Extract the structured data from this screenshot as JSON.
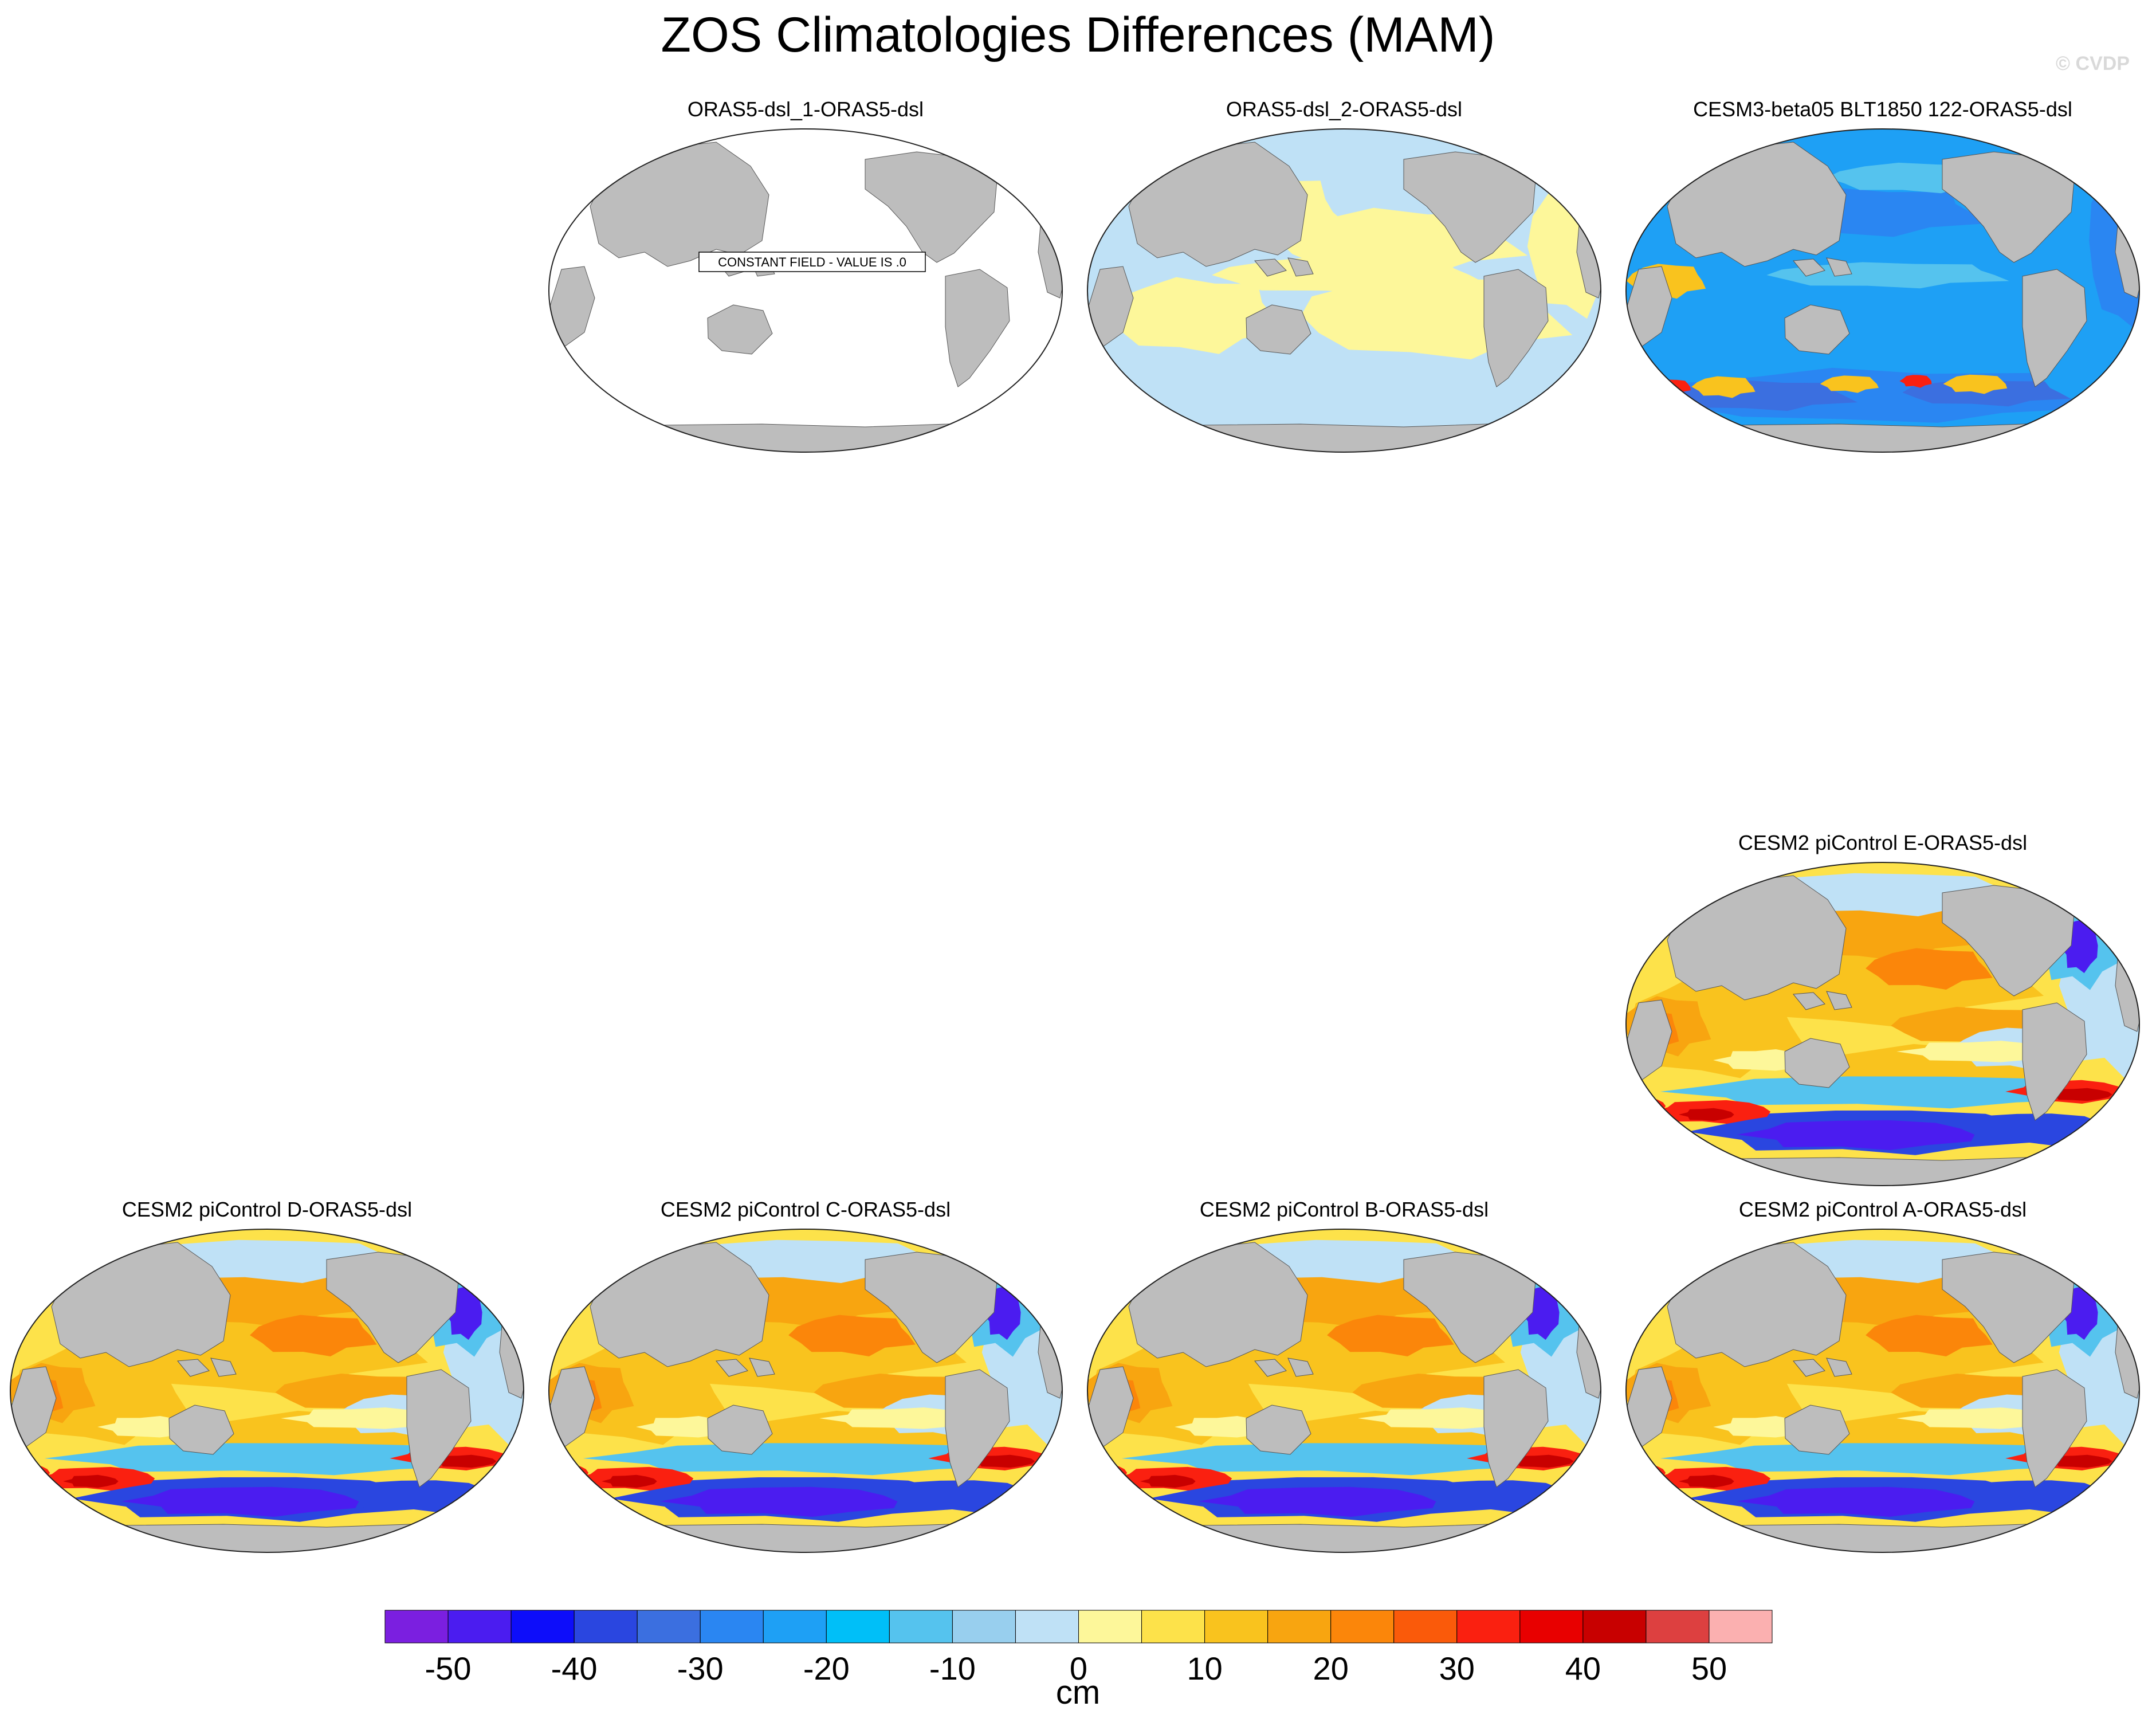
{
  "title": "ZOS Climatologies Differences (MAM)",
  "watermark": "© CVDP",
  "chart_data": {
    "type": "heatmap",
    "variable": "ZOS",
    "season": "MAM",
    "projection": "global map",
    "panels": [
      {
        "title": "ORAS5-dsl_1-ORAS5-dsl",
        "pattern": "constant",
        "annotation": "CONSTANT FIELD - VALUE IS .0"
      },
      {
        "title": "ORAS5-dsl_2-ORAS5-dsl",
        "pattern": "near-zero"
      },
      {
        "title": "CESM3-beta05 BLT1850 122-ORAS5-dsl",
        "pattern": "negative-dominant"
      },
      {
        "title": "CESM2 piControl E-ORAS5-dsl",
        "pattern": "pacific-positive-southern-negative"
      },
      {
        "title": "CESM2 piControl D-ORAS5-dsl",
        "pattern": "pacific-positive-southern-negative"
      },
      {
        "title": "CESM2 piControl C-ORAS5-dsl",
        "pattern": "pacific-positive-southern-negative"
      },
      {
        "title": "CESM2 piControl B-ORAS5-dsl",
        "pattern": "pacific-positive-southern-negative"
      },
      {
        "title": "CESM2 piControl A-ORAS5-dsl",
        "pattern": "pacific-positive-southern-negative"
      }
    ],
    "colorbar": {
      "label": "cm",
      "levels": [
        -55,
        -50,
        -45,
        -40,
        -35,
        -30,
        -25,
        -20,
        -15,
        -10,
        -5,
        0,
        5,
        10,
        15,
        20,
        25,
        30,
        35,
        40,
        45,
        50,
        55
      ],
      "tick_labels": [
        "-50",
        "-40",
        "-30",
        "-20",
        "-10",
        "0",
        "10",
        "20",
        "30",
        "40",
        "50"
      ],
      "colors": [
        "#7b1fe0",
        "#4b1cf0",
        "#0d0dfa",
        "#2a46e0",
        "#3b6fe0",
        "#2a86f2",
        "#1ea0f5",
        "#00bff8",
        "#55c3ee",
        "#98cfee",
        "#bfe1f6",
        "#fdf79a",
        "#fde24a",
        "#f9c31e",
        "#f8a510",
        "#fb860a",
        "#fa5a0a",
        "#fa2010",
        "#e80000",
        "#c80000",
        "#dd4040",
        "#fbb0b0"
      ]
    },
    "map_colors": {
      "land": "#bdbdbd",
      "ocean_zero": "#ffffff"
    }
  }
}
